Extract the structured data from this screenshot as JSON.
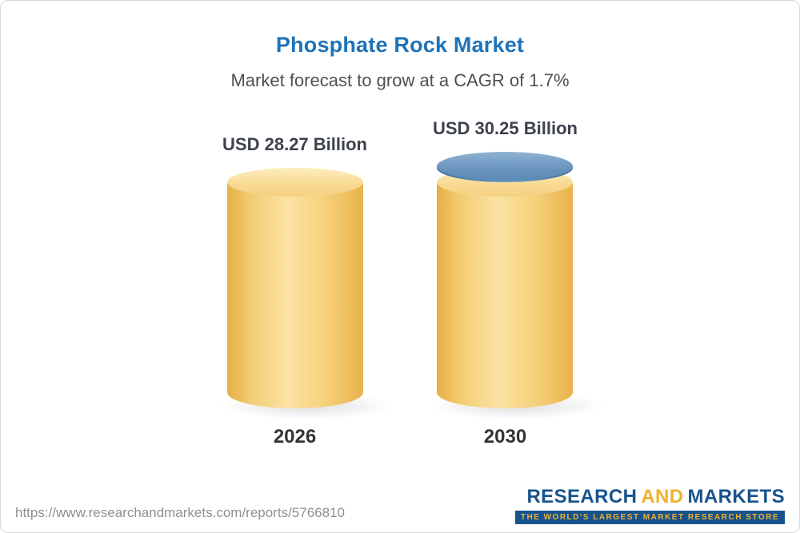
{
  "header": {
    "title": "Phosphate Rock Market",
    "subtitle": "Market forecast to grow at a CAGR of 1.7%"
  },
  "chart_data": {
    "type": "bar",
    "variant": "3d-cylinder",
    "title": "Phosphate Rock Market",
    "subtitle": "Market forecast to grow at a CAGR of 1.7%",
    "cagr": "1.7%",
    "unit": "USD Billion",
    "categories": [
      "2026",
      "2030"
    ],
    "values": [
      28.27,
      30.25
    ],
    "value_labels": [
      "USD 28.27 Billion",
      "USD 30.25 Billion"
    ],
    "bar_color": "#f6cf79",
    "cap_color": "#5d8cb8",
    "grid": false,
    "legend_position": "none"
  },
  "footer": {
    "url": "https://www.researchandmarkets.com/reports/5766810",
    "logo": {
      "part1": "RESEARCH",
      "part2": "AND",
      "part3": "MARKETS",
      "tagline": "THE WORLD'S LARGEST MARKET RESEARCH STORE"
    },
    "brand_blue": "#17538c",
    "brand_gold": "#f0b02f"
  }
}
